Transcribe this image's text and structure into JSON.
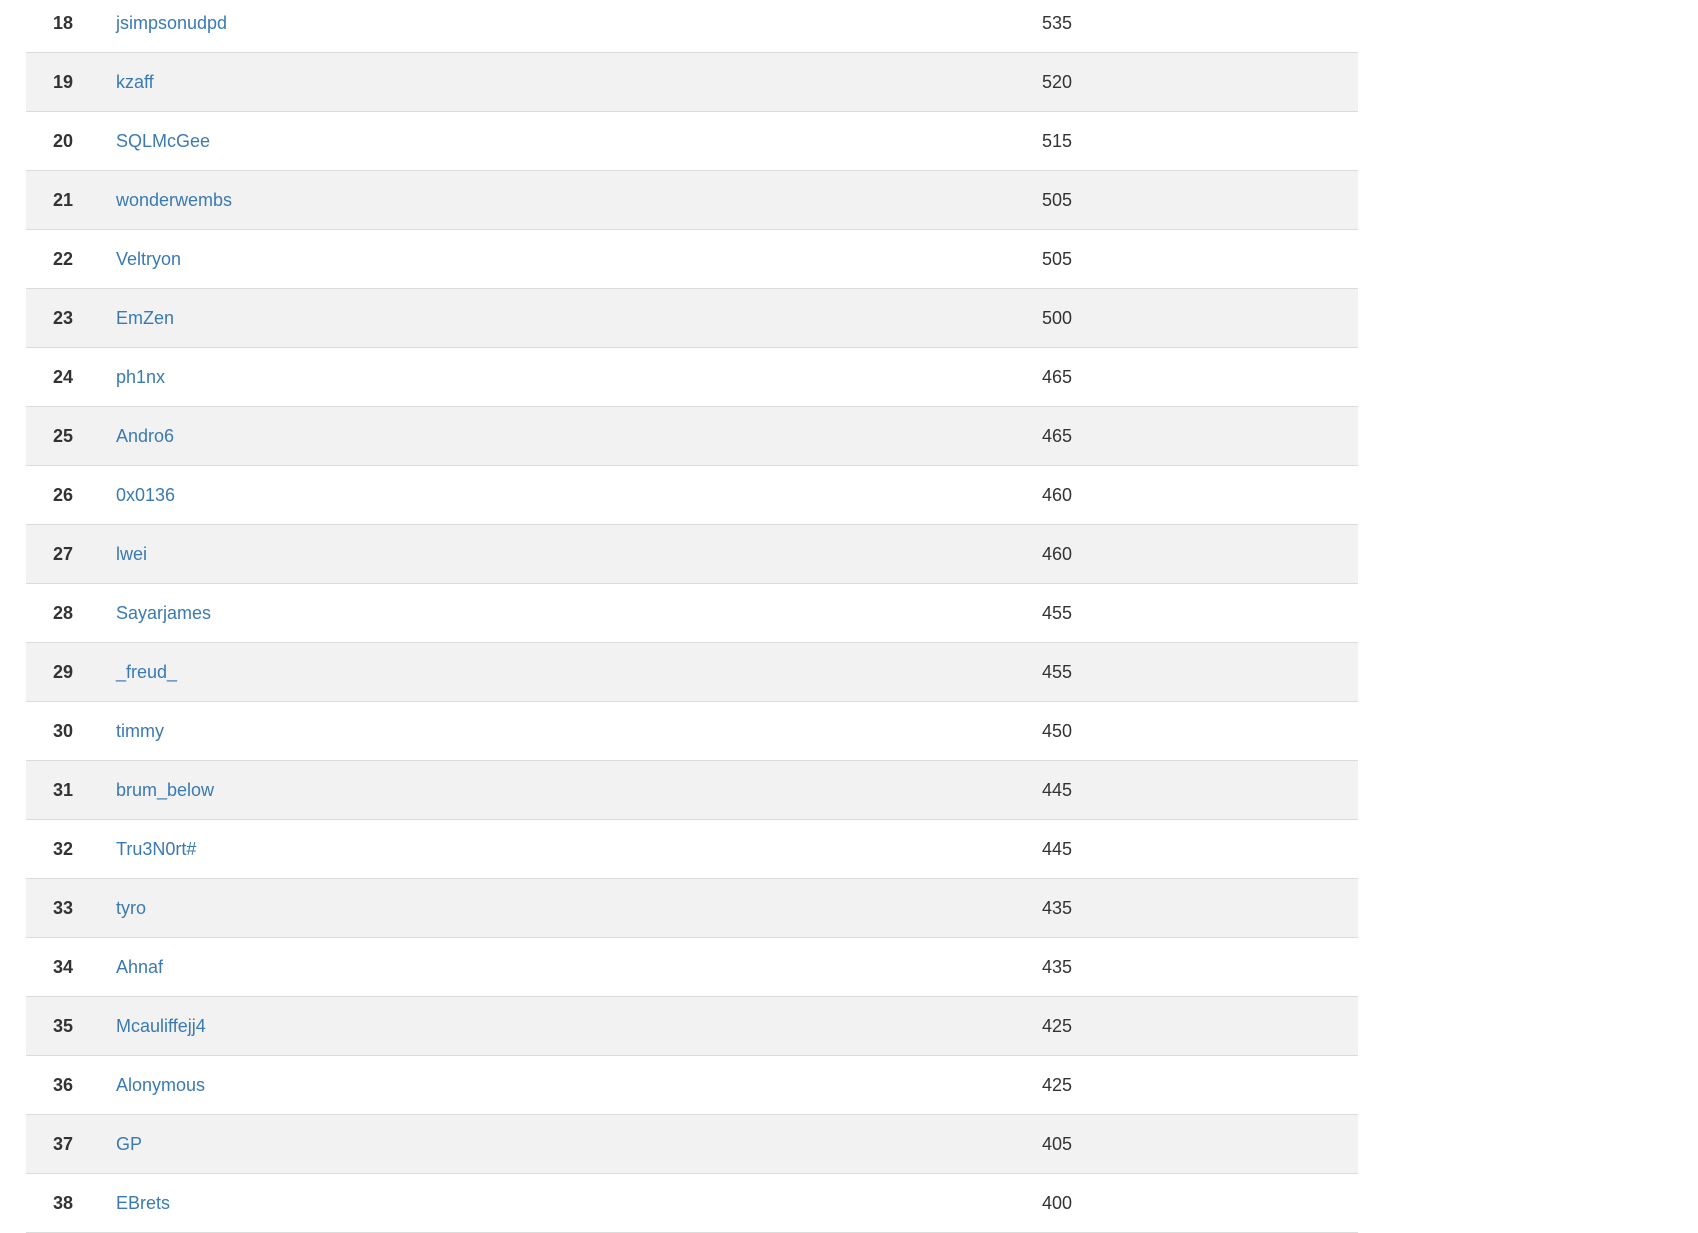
{
  "leaderboard": {
    "link_color": "#3a7ab3",
    "rows": [
      {
        "rank": "18",
        "name": "jsimpsonudpd",
        "score": "535"
      },
      {
        "rank": "19",
        "name": "kzaff",
        "score": "520"
      },
      {
        "rank": "20",
        "name": "SQLMcGee",
        "score": "515"
      },
      {
        "rank": "21",
        "name": "wonderwembs",
        "score": "505"
      },
      {
        "rank": "22",
        "name": "Veltryon",
        "score": "505"
      },
      {
        "rank": "23",
        "name": "EmZen",
        "score": "500"
      },
      {
        "rank": "24",
        "name": "ph1nx",
        "score": "465"
      },
      {
        "rank": "25",
        "name": "Andro6",
        "score": "465"
      },
      {
        "rank": "26",
        "name": "0x0136",
        "score": "460"
      },
      {
        "rank": "27",
        "name": "lwei",
        "score": "460"
      },
      {
        "rank": "28",
        "name": "Sayarjames",
        "score": "455"
      },
      {
        "rank": "29",
        "name": "_freud_",
        "score": "455"
      },
      {
        "rank": "30",
        "name": "timmy",
        "score": "450"
      },
      {
        "rank": "31",
        "name": "brum_below",
        "score": "445"
      },
      {
        "rank": "32",
        "name": "Tru3N0rt#",
        "score": "445"
      },
      {
        "rank": "33",
        "name": "tyro",
        "score": "435"
      },
      {
        "rank": "34",
        "name": "Ahnaf",
        "score": "435"
      },
      {
        "rank": "35",
        "name": "Mcauliffejj4",
        "score": "425"
      },
      {
        "rank": "36",
        "name": "Alonymous",
        "score": "425"
      },
      {
        "rank": "37",
        "name": "GP",
        "score": "405"
      },
      {
        "rank": "38",
        "name": "EBrets",
        "score": "400"
      }
    ]
  }
}
